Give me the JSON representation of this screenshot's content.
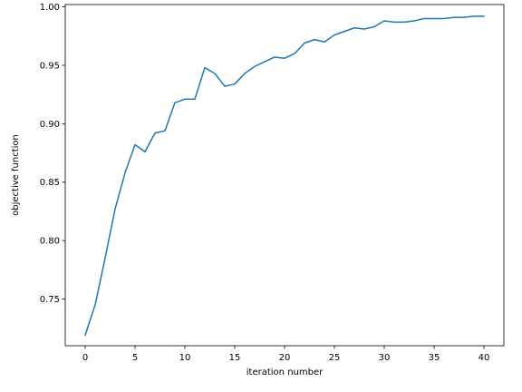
{
  "chart_data": {
    "type": "line",
    "title": "",
    "xlabel": "iteration number",
    "ylabel": "objective function",
    "xlim": [
      -2,
      42
    ],
    "ylim": [
      0.71,
      1.002
    ],
    "xticks": [
      0,
      5,
      10,
      15,
      20,
      25,
      30,
      35,
      40
    ],
    "xtick_labels": [
      "0",
      "5",
      "10",
      "15",
      "20",
      "25",
      "30",
      "35",
      "40"
    ],
    "yticks": [
      0.75,
      0.8,
      0.85,
      0.9,
      0.95,
      1.0
    ],
    "ytick_labels": [
      "0.75",
      "0.80",
      "0.85",
      "0.90",
      "0.95",
      "1.00"
    ],
    "grid": false,
    "legend": "none",
    "series": [
      {
        "color": "#1f77b4",
        "x": [
          0,
          1,
          2,
          3,
          4,
          5,
          6,
          7,
          8,
          9,
          10,
          11,
          12,
          13,
          14,
          15,
          16,
          17,
          18,
          19,
          20,
          21,
          22,
          23,
          24,
          25,
          26,
          27,
          28,
          29,
          30,
          31,
          32,
          33,
          34,
          35,
          36,
          37,
          38,
          39,
          40
        ],
        "y": [
          0.719,
          0.745,
          0.785,
          0.827,
          0.858,
          0.882,
          0.876,
          0.892,
          0.894,
          0.918,
          0.921,
          0.921,
          0.948,
          0.943,
          0.932,
          0.934,
          0.943,
          0.949,
          0.953,
          0.957,
          0.956,
          0.96,
          0.969,
          0.972,
          0.97,
          0.976,
          0.979,
          0.982,
          0.981,
          0.983,
          0.988,
          0.987,
          0.987,
          0.988,
          0.99,
          0.99,
          0.99,
          0.991,
          0.991,
          0.992,
          0.992
        ]
      }
    ]
  }
}
